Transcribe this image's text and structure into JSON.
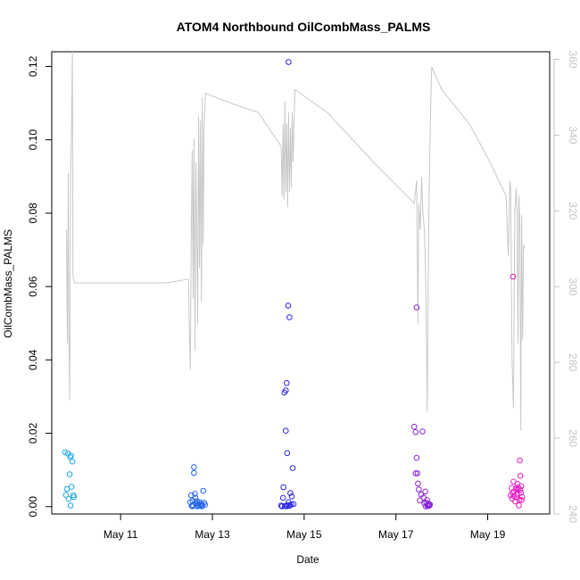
{
  "chart_data": {
    "type": "scatter",
    "title": "ATOM4 Northbound OilCombMass_PALMS",
    "xlabel": "Date",
    "ylabel": "OilCombMass_PALMS",
    "x_ticks": [
      "May 11",
      "May 13",
      "May 15",
      "May 17",
      "May 19"
    ],
    "x_tick_days": [
      11,
      13,
      15,
      17,
      19
    ],
    "xlim_days": [
      9.5,
      20.35
    ],
    "ylim": [
      -0.002,
      0.124
    ],
    "y_ticks": [
      "0.00",
      "0.02",
      "0.04",
      "0.06",
      "0.08",
      "0.10",
      "0.12"
    ],
    "y2lim": [
      240,
      362
    ],
    "y2_ticks": [
      "240",
      "260",
      "280",
      "300",
      "320",
      "340",
      "360"
    ],
    "grid": false,
    "legend": "none",
    "secondary_line": {
      "color": "#c8c8c8",
      "points": [
        [
          9.82,
          315
        ],
        [
          9.84,
          285
        ],
        [
          9.86,
          330
        ],
        [
          9.87,
          292
        ],
        [
          9.89,
          270
        ],
        [
          9.91,
          330
        ],
        [
          9.93,
          340
        ],
        [
          9.95,
          362
        ],
        [
          9.96,
          303
        ],
        [
          10.0,
          301
        ],
        [
          11.0,
          301
        ],
        [
          12.0,
          301
        ],
        [
          12.48,
          302
        ],
        [
          12.5,
          287
        ],
        [
          12.52,
          278
        ],
        [
          12.54,
          312
        ],
        [
          12.56,
          336
        ],
        [
          12.58,
          297
        ],
        [
          12.6,
          339
        ],
        [
          12.62,
          283
        ],
        [
          12.64,
          333
        ],
        [
          12.66,
          317
        ],
        [
          12.68,
          290
        ],
        [
          12.7,
          345
        ],
        [
          12.72,
          305
        ],
        [
          12.74,
          344
        ],
        [
          12.76,
          296
        ],
        [
          12.78,
          350
        ],
        [
          12.8,
          311
        ],
        [
          12.82,
          342
        ],
        [
          12.85,
          351
        ],
        [
          13.5,
          348
        ],
        [
          14.0,
          346
        ],
        [
          14.5,
          337
        ],
        [
          14.52,
          324
        ],
        [
          14.54,
          343
        ],
        [
          14.56,
          323
        ],
        [
          14.58,
          349
        ],
        [
          14.6,
          325
        ],
        [
          14.62,
          343
        ],
        [
          14.64,
          321
        ],
        [
          14.66,
          346
        ],
        [
          14.68,
          325
        ],
        [
          14.7,
          342
        ],
        [
          14.72,
          326
        ],
        [
          14.74,
          346
        ],
        [
          14.76,
          333
        ],
        [
          14.78,
          343
        ],
        [
          14.8,
          352
        ],
        [
          15.5,
          346
        ],
        [
          16.5,
          333
        ],
        [
          17.4,
          322
        ],
        [
          17.45,
          328
        ],
        [
          17.48,
          290
        ],
        [
          17.5,
          322
        ],
        [
          17.53,
          315
        ],
        [
          17.56,
          329
        ],
        [
          17.59,
          319
        ],
        [
          17.62,
          315
        ],
        [
          17.65,
          302
        ],
        [
          17.68,
          267
        ],
        [
          17.72,
          321
        ],
        [
          17.75,
          344
        ],
        [
          17.78,
          358
        ],
        [
          18.0,
          352
        ],
        [
          18.6,
          343
        ],
        [
          19.0,
          334
        ],
        [
          19.4,
          324
        ],
        [
          19.45,
          308
        ],
        [
          19.48,
          328
        ],
        [
          19.5,
          326
        ],
        [
          19.53,
          281
        ],
        [
          19.56,
          268
        ],
        [
          19.59,
          320
        ],
        [
          19.62,
          326
        ],
        [
          19.64,
          319
        ],
        [
          19.66,
          285
        ],
        [
          19.68,
          324
        ],
        [
          19.7,
          316
        ],
        [
          19.72,
          262
        ],
        [
          19.74,
          319
        ],
        [
          19.76,
          286
        ],
        [
          19.78,
          311
        ],
        [
          19.8,
          310
        ]
      ]
    },
    "series": [
      {
        "color": "#1ea6ea",
        "points": [
          [
            9.79,
            0.0148
          ],
          [
            9.81,
            0.0032
          ],
          [
            9.83,
            0.0048
          ],
          [
            9.85,
            0.0145
          ],
          [
            9.87,
            0.0021
          ],
          [
            9.89,
            0.0088
          ],
          [
            9.91,
            0.0003
          ],
          [
            9.9,
            0.0135
          ],
          [
            9.92,
            0.0139
          ],
          [
            9.93,
            0.0054
          ],
          [
            9.95,
            0.0123
          ],
          [
            9.97,
            0.0031
          ],
          [
            9.98,
            0.0026
          ]
        ]
      },
      {
        "color": "#1f63e8",
        "points": [
          [
            12.52,
            0.0012
          ],
          [
            12.54,
            0.0031
          ],
          [
            12.55,
            0.0002
          ],
          [
            12.57,
            0.0016
          ],
          [
            12.58,
            0.0004
          ],
          [
            12.6,
            0.0108
          ],
          [
            12.6,
            0.0092
          ],
          [
            12.62,
            0.0035
          ],
          [
            12.63,
            0.0024
          ],
          [
            12.64,
            0.0009
          ],
          [
            12.66,
            0.0015
          ],
          [
            12.68,
            0.0006
          ],
          [
            12.7,
            0.0002
          ],
          [
            12.72,
            0.0012
          ],
          [
            12.74,
            0.0004
          ],
          [
            12.76,
            0.0008
          ],
          [
            12.78,
            0.0003
          ],
          [
            12.8,
            0.0043
          ],
          [
            12.82,
            0.0011
          ],
          [
            12.84,
            0.0005
          ],
          [
            12.56,
            0.0001
          ],
          [
            12.66,
            0.0001
          ],
          [
            12.77,
            0.0001
          ]
        ]
      },
      {
        "color": "#2d25e0",
        "points": [
          [
            14.5,
            0.0003
          ],
          [
            14.52,
            0.0001
          ],
          [
            14.54,
            0.0024
          ],
          [
            14.55,
            0.0053
          ],
          [
            14.57,
            0.0311
          ],
          [
            14.6,
            0.0317
          ],
          [
            14.62,
            0.0337
          ],
          [
            14.6,
            0.0207
          ],
          [
            14.63,
            0.0146
          ],
          [
            14.65,
            0.0548
          ],
          [
            14.68,
            0.0516
          ],
          [
            14.66,
            0.1212
          ],
          [
            14.7,
            0.0037
          ],
          [
            14.72,
            0.0006
          ],
          [
            14.75,
            0.0105
          ],
          [
            14.77,
            0.0007
          ],
          [
            14.58,
            0.0002
          ],
          [
            14.64,
            0.0004
          ],
          [
            14.66,
            0.0012
          ],
          [
            14.69,
            0.0003
          ],
          [
            14.73,
            0.0028
          ],
          [
            14.61,
            0.0001
          ],
          [
            14.67,
            0.0002
          ]
        ]
      },
      {
        "color": "#8a25d8",
        "points": [
          [
            17.4,
            0.0218
          ],
          [
            17.43,
            0.0203
          ],
          [
            17.45,
            0.0133
          ],
          [
            17.43,
            0.0091
          ],
          [
            17.47,
            0.0091
          ],
          [
            17.45,
            0.0543
          ],
          [
            17.48,
            0.0063
          ],
          [
            17.5,
            0.0047
          ],
          [
            17.52,
            0.0017
          ],
          [
            17.55,
            0.0033
          ],
          [
            17.58,
            0.0205
          ],
          [
            17.6,
            0.0025
          ],
          [
            17.62,
            0.0009
          ],
          [
            17.64,
            0.0041
          ],
          [
            17.66,
            0.0011
          ],
          [
            17.68,
            0.0018
          ],
          [
            17.7,
            0.0004
          ],
          [
            17.72,
            0.0002
          ],
          [
            17.74,
            0.0006
          ],
          [
            17.65,
            0.0001
          ],
          [
            17.69,
            0.0002
          ],
          [
            17.71,
            0.0008
          ],
          [
            17.73,
            0.0003
          ]
        ]
      },
      {
        "color": "#e51fc4",
        "points": [
          [
            19.5,
            0.0031
          ],
          [
            19.52,
            0.0051
          ],
          [
            19.53,
            0.0022
          ],
          [
            19.55,
            0.0627
          ],
          [
            19.56,
            0.0068
          ],
          [
            19.58,
            0.0041
          ],
          [
            19.6,
            0.0014
          ],
          [
            19.62,
            0.0051
          ],
          [
            19.63,
            0.0025
          ],
          [
            19.65,
            0.0062
          ],
          [
            19.66,
            0.0046
          ],
          [
            19.68,
            0.0003
          ],
          [
            19.7,
            0.0126
          ],
          [
            19.71,
            0.0084
          ],
          [
            19.72,
            0.0038
          ],
          [
            19.73,
            0.0056
          ],
          [
            19.74,
            0.0018
          ],
          [
            19.75,
            0.0027
          ],
          [
            19.54,
            0.0038
          ],
          [
            19.57,
            0.0029
          ],
          [
            19.61,
            0.0047
          ],
          [
            19.64,
            0.0033
          ],
          [
            19.67,
            0.0052
          ],
          [
            19.69,
            0.0019
          ],
          [
            19.71,
            0.0046
          ]
        ]
      }
    ]
  }
}
